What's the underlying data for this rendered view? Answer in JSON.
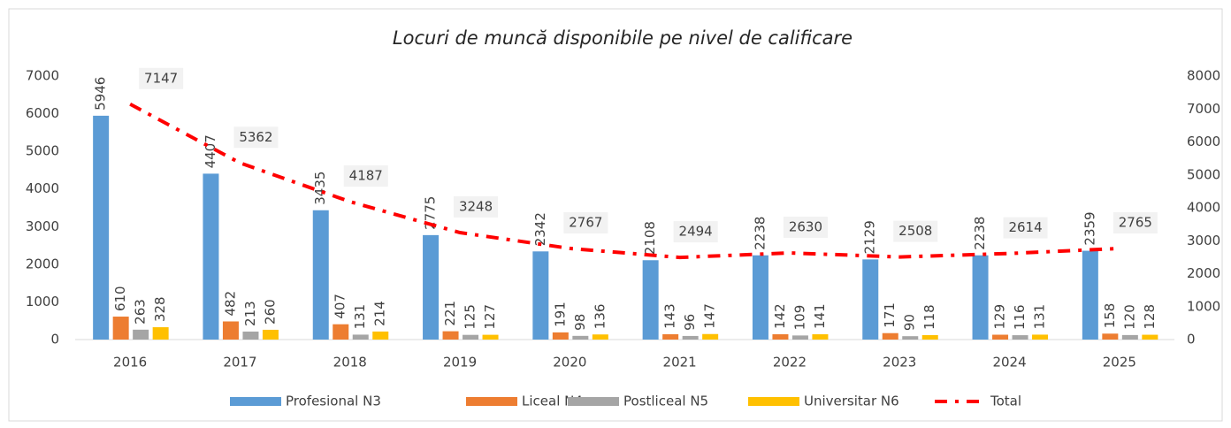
{
  "chart_data": {
    "type": "bar",
    "title": "Locuri de muncă disponibile pe nivel de calificare",
    "categories": [
      "2016",
      "2017",
      "2018",
      "2019",
      "2020",
      "2021",
      "2022",
      "2023",
      "2024",
      "2025"
    ],
    "series": [
      {
        "name": "Profesional N3",
        "color": "#5b9bd5",
        "values": [
          5946,
          4407,
          3435,
          2775,
          2342,
          2108,
          2238,
          2129,
          2238,
          2359
        ]
      },
      {
        "name": "Liceal N4",
        "color": "#ed7d31",
        "values": [
          610,
          482,
          407,
          221,
          191,
          143,
          142,
          171,
          129,
          158
        ]
      },
      {
        "name": "Postliceal N5",
        "color": "#a5a5a5",
        "values": [
          263,
          213,
          131,
          125,
          98,
          96,
          109,
          90,
          116,
          120
        ]
      },
      {
        "name": "Universitar N6",
        "color": "#ffc000",
        "values": [
          328,
          260,
          214,
          127,
          136,
          147,
          141,
          118,
          131,
          128
        ]
      },
      {
        "name": "Total",
        "color": "#ff0000",
        "type": "line",
        "axis": "y2",
        "values": [
          7147,
          5362,
          4187,
          3248,
          2767,
          2494,
          2630,
          2508,
          2614,
          2765
        ]
      }
    ],
    "ylim": [
      0,
      7000
    ],
    "yticks": [
      0,
      1000,
      2000,
      3000,
      4000,
      5000,
      6000,
      7000
    ],
    "y2lim": [
      0,
      8000
    ],
    "y2ticks": [
      0,
      1000,
      2000,
      3000,
      4000,
      5000,
      6000,
      7000,
      8000
    ],
    "grid": false,
    "legend": "bottom"
  }
}
